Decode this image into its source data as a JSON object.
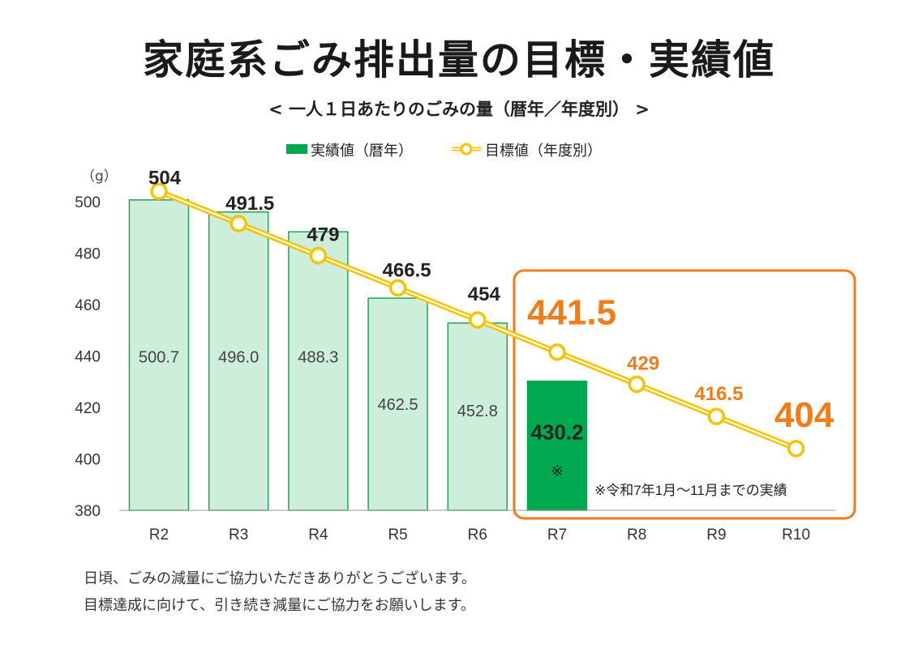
{
  "chart_data": {
    "type": "bar+line",
    "title": "家庭系ごみ排出量の目標・実績値",
    "subtitle": "< 一人１日あたりのごみの量（暦年／年度別） >",
    "unit": "（g）",
    "categories": [
      "R2",
      "R3",
      "R4",
      "R5",
      "R6",
      "R7",
      "R8",
      "R9",
      "R10"
    ],
    "ylim": [
      380,
      510
    ],
    "yticks": [
      380,
      400,
      420,
      440,
      460,
      480,
      500
    ],
    "series": [
      {
        "name": "実績値（暦年）",
        "type": "bar",
        "values": [
          500.7,
          496.0,
          488.3,
          462.5,
          452.8,
          430.2,
          null,
          null,
          null
        ],
        "labels": [
          "500.7",
          "496.0",
          "488.3",
          "462.5",
          "452.8",
          "430.2",
          "",
          "",
          ""
        ]
      },
      {
        "name": "目標値（年度別）",
        "type": "line",
        "values": [
          504,
          491.5,
          479,
          466.5,
          454,
          441.5,
          429,
          416.5,
          404
        ],
        "labels": [
          "504",
          "491.5",
          "479",
          "466.5",
          "454",
          "441.5",
          "429",
          "416.5",
          "404"
        ]
      }
    ],
    "bar_mark": "※",
    "note": "※令和7年1月～11月までの実績",
    "colors": {
      "bar_past_fill": "#cdeedb",
      "bar_past_stroke": "#22a455",
      "bar_current": "#00a84f",
      "line": "#f5c400",
      "highlight": "#f07d17",
      "label_dark": "#222222"
    }
  },
  "legend": {
    "bar_label": "実績値（暦年）",
    "line_label": "目標値（年度別）"
  },
  "footer": {
    "line1": "日頃、ごみの減量にご協力いただきありがとうございます。",
    "line2": "目標達成に向けて、引き続き減量にご協力をお願いします。"
  }
}
